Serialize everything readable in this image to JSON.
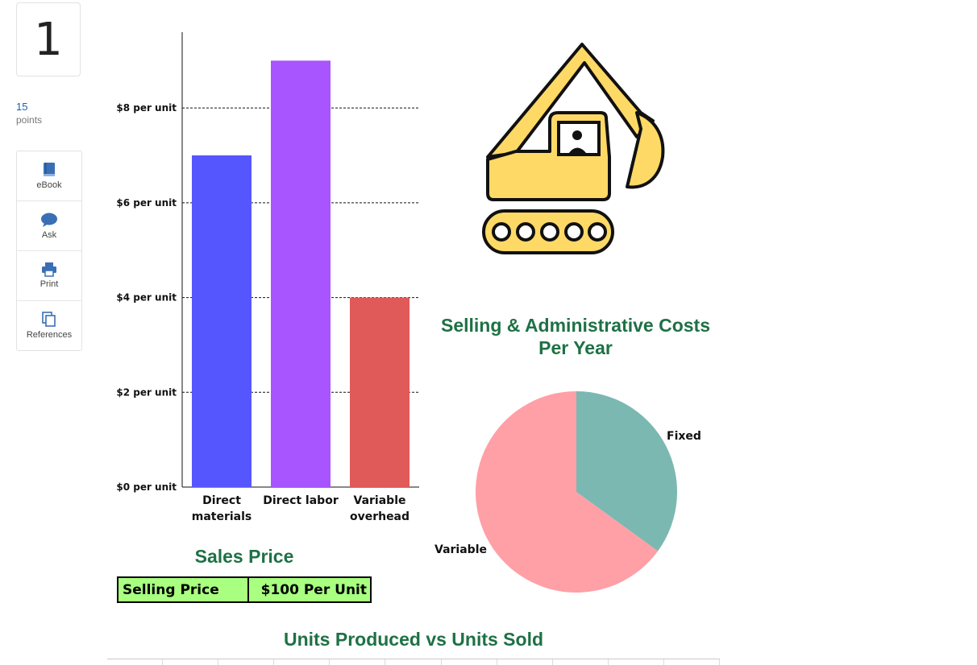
{
  "question": {
    "number": "1",
    "points_value": "15",
    "points_label": "points"
  },
  "tools": [
    {
      "label": "eBook",
      "icon": "ebook-icon"
    },
    {
      "label": "Ask",
      "icon": "chat-bubble-icon"
    },
    {
      "label": "Print",
      "icon": "printer-icon"
    },
    {
      "label": "References",
      "icon": "references-icon"
    }
  ],
  "colors": {
    "accent_blue": "#3a6fb5",
    "title_green": "#1e7145",
    "bar_materials": "#5656ff",
    "bar_labor": "#a855ff",
    "bar_overhead": "#e05a5a",
    "pie_fixed": "#7bb8b2",
    "pie_variable": "#ff9fa6",
    "excavator_yellow": "#ffd966",
    "sales_green": "#a9ff80"
  },
  "chart_data": [
    {
      "type": "bar",
      "categories": [
        "Direct materials",
        "Direct labor",
        "Variable overhead"
      ],
      "category_lines": [
        [
          "Direct",
          "materials"
        ],
        [
          "Direct labor"
        ],
        [
          "Variable",
          "overhead"
        ]
      ],
      "values": [
        7,
        9,
        4
      ],
      "yticks": [
        0,
        2,
        4,
        6,
        8
      ],
      "ytick_labels": [
        "$0 per unit",
        "$2 per unit",
        "$4 per unit",
        "$6 per unit",
        "$8 per unit"
      ],
      "ylim": [
        0,
        9.6
      ],
      "grid": true,
      "title": "",
      "xlabel": "",
      "ylabel": ""
    },
    {
      "type": "pie",
      "title": "Selling & Administrative Costs Per Year",
      "title_lines": [
        "Selling & Administrative Costs",
        "Per Year"
      ],
      "labels": [
        "Fixed",
        "Variable"
      ],
      "values": [
        35,
        65
      ]
    }
  ],
  "sales_price": {
    "title": "Sales Price",
    "label": "Selling Price",
    "value": "$100 Per Unit"
  },
  "units_section": {
    "title": "Units Produced vs Units Sold"
  }
}
